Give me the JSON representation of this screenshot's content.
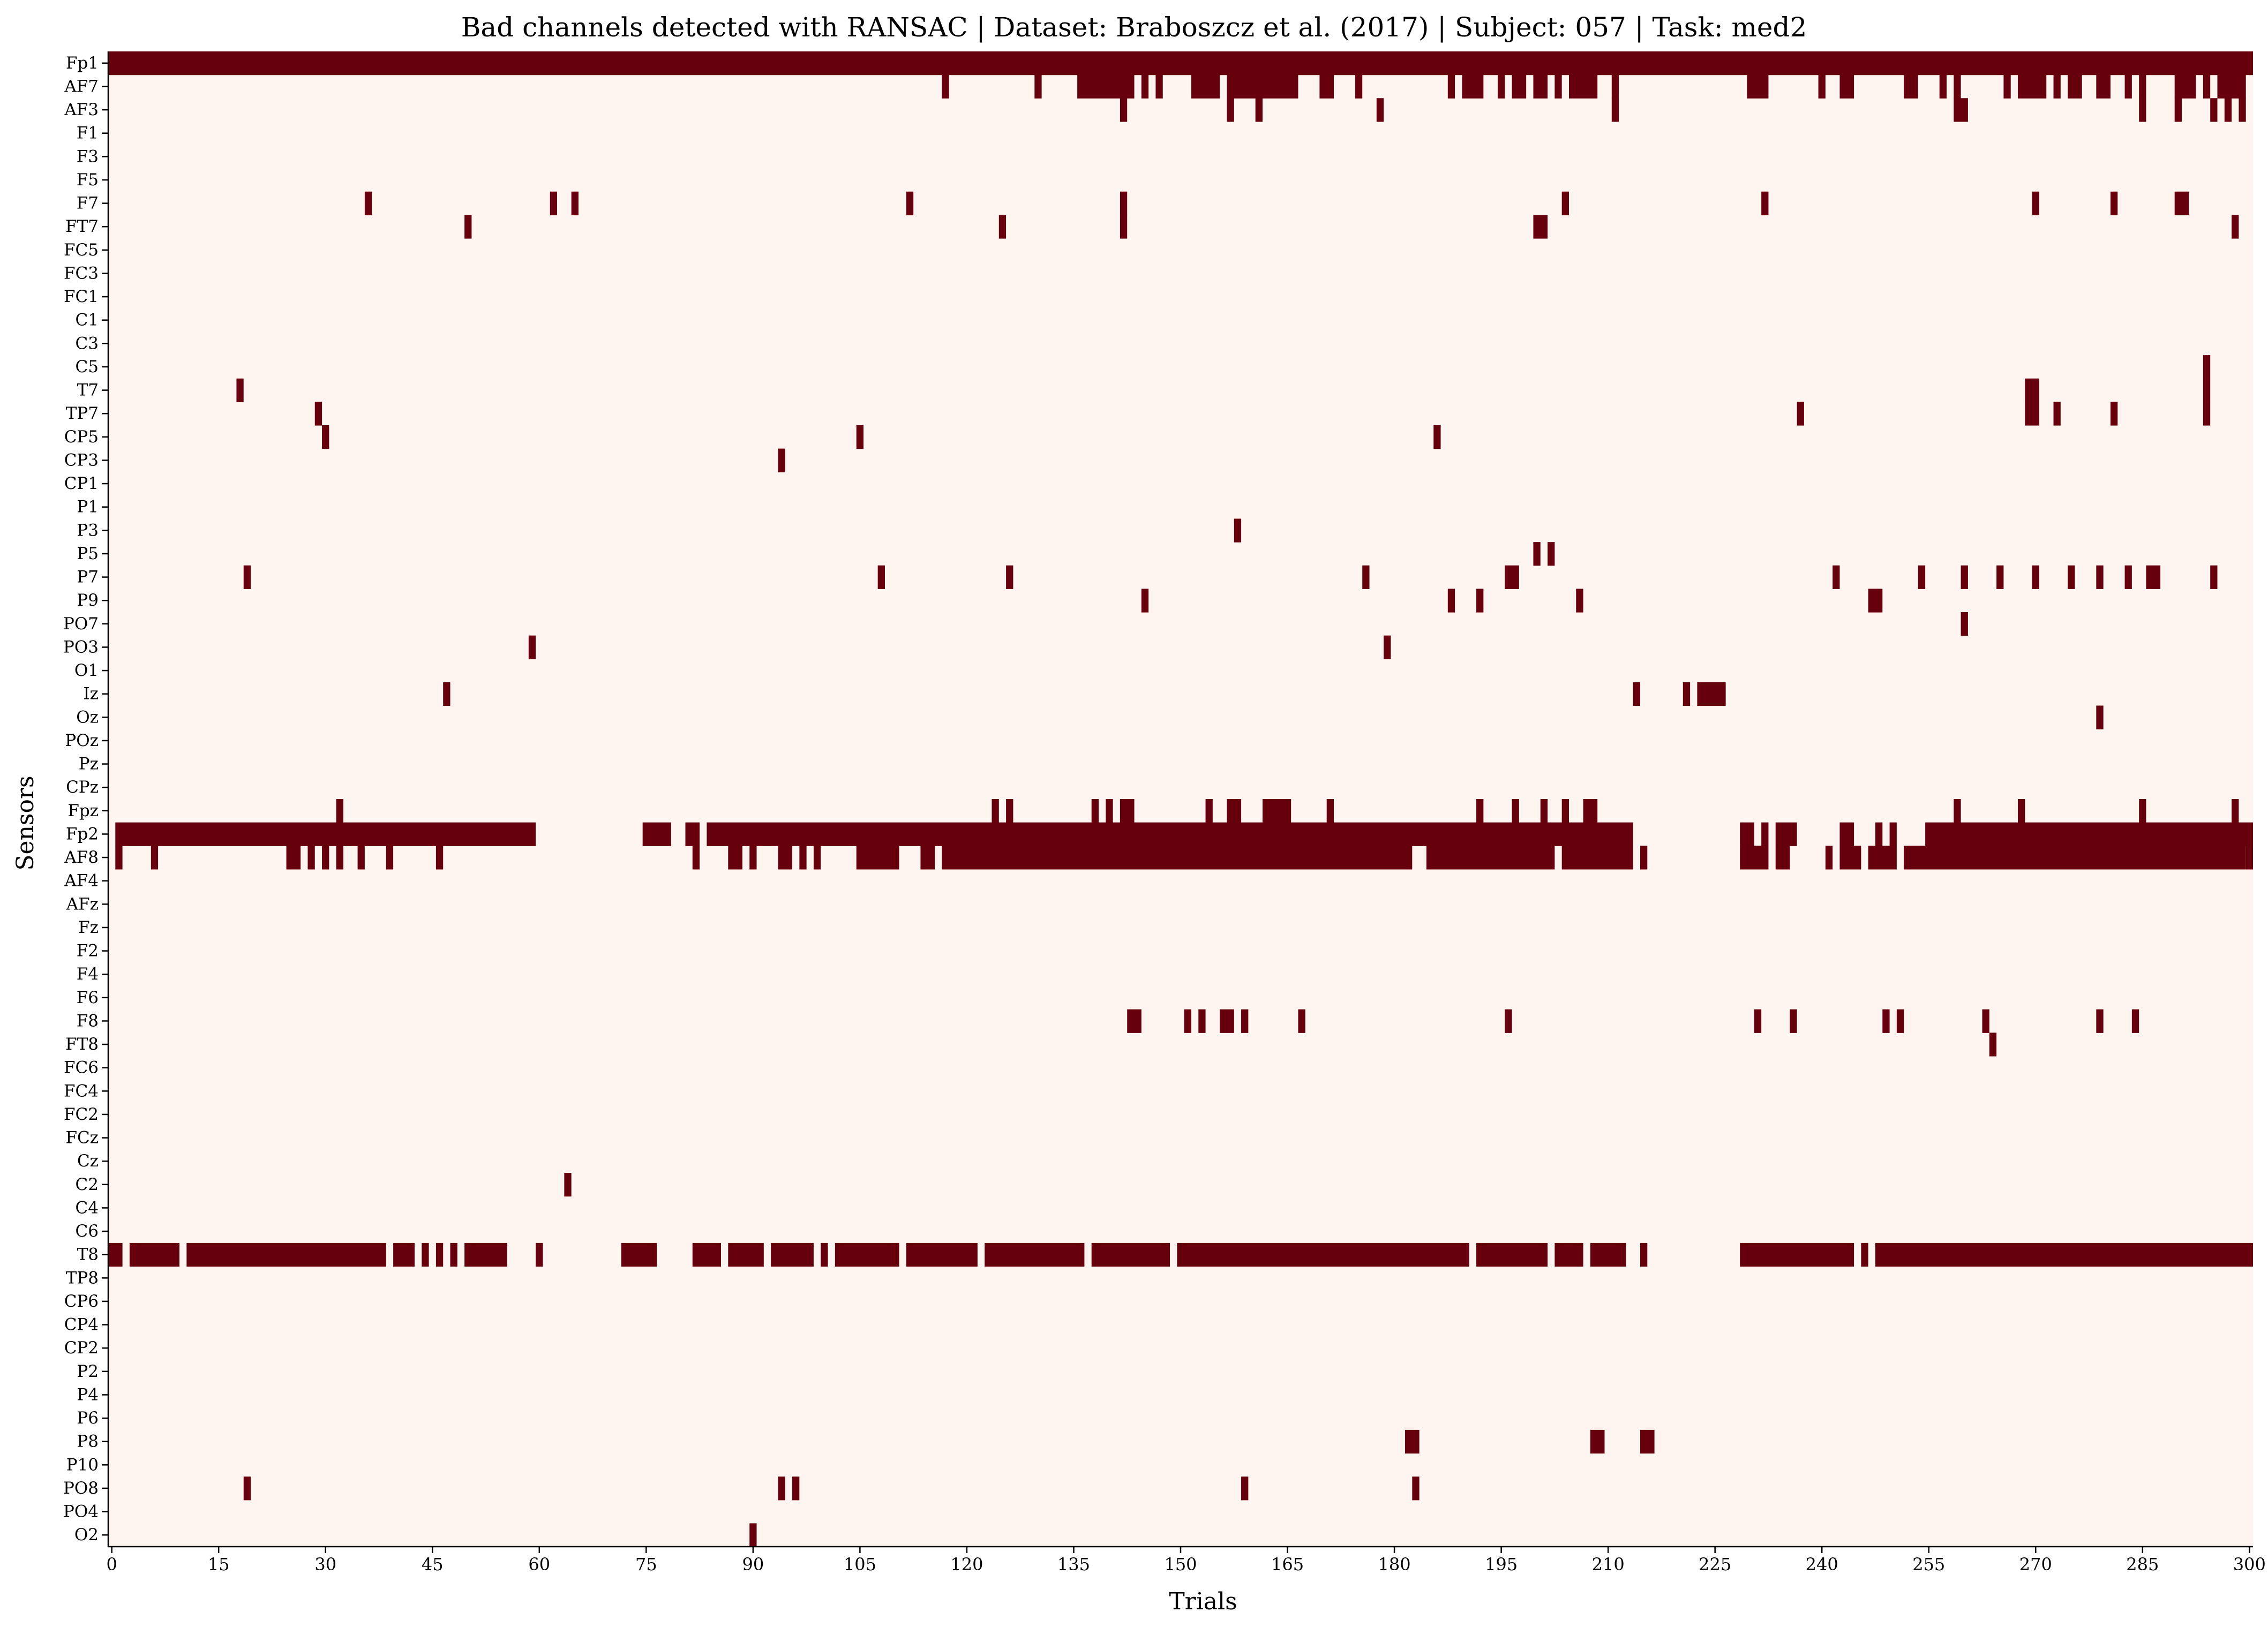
{
  "chart_data": {
    "type": "heatmap",
    "title": "Bad channels detected with RANSAC  |  Dataset: Braboszcz et al. (2017) | Subject: 057 | Task: med2",
    "xlabel": "Trials",
    "ylabel": "Sensors",
    "xlim": [
      0,
      301
    ],
    "xticks": [
      0,
      15,
      30,
      45,
      60,
      75,
      90,
      105,
      120,
      135,
      150,
      165,
      180,
      195,
      210,
      225,
      240,
      255,
      270,
      285,
      300
    ],
    "colors": {
      "bad": "#67000d",
      "good": "#fff5f0",
      "highlight_label": "#e8111d",
      "label": "#000000"
    },
    "highlighted_sensors": [
      "Fp1",
      "Fp2",
      "AF8",
      "T8"
    ],
    "sensors": [
      "Fp1",
      "AF7",
      "AF3",
      "F1",
      "F3",
      "F5",
      "F7",
      "FT7",
      "FC5",
      "FC3",
      "FC1",
      "C1",
      "C3",
      "C5",
      "T7",
      "TP7",
      "CP5",
      "CP3",
      "CP1",
      "P1",
      "P3",
      "P5",
      "P7",
      "P9",
      "PO7",
      "PO3",
      "O1",
      "Iz",
      "Oz",
      "POz",
      "Pz",
      "CPz",
      "Fpz",
      "Fp2",
      "AF8",
      "AF4",
      "AFz",
      "Fz",
      "F2",
      "F4",
      "F6",
      "F8",
      "FT8",
      "FC6",
      "FC4",
      "FC2",
      "FCz",
      "Cz",
      "C2",
      "C4",
      "C6",
      "T8",
      "TP8",
      "CP6",
      "CP4",
      "CP2",
      "P2",
      "P4",
      "P6",
      "P8",
      "P10",
      "PO8",
      "PO4",
      "O2"
    ],
    "bad_segments": {
      "Fp1": [
        [
          0,
          301
        ]
      ],
      "AF7": [
        [
          117,
          118
        ],
        [
          130,
          131
        ],
        [
          136,
          144
        ],
        [
          145,
          146
        ],
        [
          147,
          148
        ],
        [
          152,
          156
        ],
        [
          157,
          167
        ],
        [
          170,
          172
        ],
        [
          175,
          176
        ],
        [
          188,
          189
        ],
        [
          190,
          193
        ],
        [
          195,
          196
        ],
        [
          197,
          199
        ],
        [
          200,
          202
        ],
        [
          203,
          204
        ],
        [
          205,
          209
        ],
        [
          211,
          212
        ],
        [
          230,
          233
        ],
        [
          240,
          241
        ],
        [
          243,
          245
        ],
        [
          252,
          254
        ],
        [
          257,
          258
        ],
        [
          259,
          260
        ],
        [
          266,
          267
        ],
        [
          268,
          272
        ],
        [
          273,
          274
        ],
        [
          275,
          277
        ],
        [
          279,
          281
        ],
        [
          283,
          284
        ],
        [
          285,
          286
        ],
        [
          290,
          293
        ],
        [
          294,
          295
        ],
        [
          296,
          300
        ]
      ],
      "AF3": [
        [
          142,
          143
        ],
        [
          157,
          158
        ],
        [
          161,
          162
        ],
        [
          178,
          179
        ],
        [
          211,
          212
        ],
        [
          259,
          261
        ],
        [
          285,
          286
        ],
        [
          290,
          291
        ],
        [
          295,
          296
        ],
        [
          297,
          298
        ],
        [
          299,
          300
        ]
      ],
      "F7": [
        [
          36,
          37
        ],
        [
          62,
          63
        ],
        [
          65,
          66
        ],
        [
          112,
          113
        ],
        [
          142,
          143
        ],
        [
          204,
          205
        ],
        [
          232,
          233
        ],
        [
          270,
          271
        ],
        [
          281,
          282
        ],
        [
          290,
          292
        ]
      ],
      "FT7": [
        [
          50,
          51
        ],
        [
          125,
          126
        ],
        [
          142,
          143
        ],
        [
          200,
          202
        ],
        [
          298,
          299
        ]
      ],
      "C5": [
        [
          294,
          295
        ]
      ],
      "T7": [
        [
          18,
          19
        ],
        [
          269,
          271
        ],
        [
          294,
          295
        ]
      ],
      "TP7": [
        [
          29,
          30
        ],
        [
          237,
          238
        ],
        [
          269,
          271
        ],
        [
          273,
          274
        ],
        [
          281,
          282
        ],
        [
          294,
          295
        ]
      ],
      "CP5": [
        [
          30,
          31
        ],
        [
          105,
          106
        ],
        [
          186,
          187
        ]
      ],
      "CP3": [
        [
          94,
          95
        ]
      ],
      "P3": [
        [
          158,
          159
        ]
      ],
      "P5": [
        [
          200,
          201
        ],
        [
          202,
          203
        ]
      ],
      "P7": [
        [
          19,
          20
        ],
        [
          108,
          109
        ],
        [
          126,
          127
        ],
        [
          176,
          177
        ],
        [
          196,
          198
        ],
        [
          242,
          243
        ],
        [
          254,
          255
        ],
        [
          260,
          261
        ],
        [
          265,
          266
        ],
        [
          270,
          271
        ],
        [
          275,
          276
        ],
        [
          279,
          280
        ],
        [
          283,
          284
        ],
        [
          286,
          288
        ],
        [
          295,
          296
        ]
      ],
      "P9": [
        [
          145,
          146
        ],
        [
          188,
          189
        ],
        [
          192,
          193
        ],
        [
          206,
          207
        ],
        [
          247,
          249
        ]
      ],
      "PO7": [
        [
          260,
          261
        ]
      ],
      "PO3": [
        [
          59,
          60
        ],
        [
          179,
          180
        ]
      ],
      "Iz": [
        [
          47,
          48
        ],
        [
          214,
          215
        ],
        [
          221,
          222
        ],
        [
          223,
          227
        ]
      ],
      "Oz": [
        [
          279,
          280
        ]
      ],
      "Fpz": [
        [
          32,
          33
        ],
        [
          124,
          125
        ],
        [
          126,
          127
        ],
        [
          138,
          139
        ],
        [
          140,
          141
        ],
        [
          142,
          144
        ],
        [
          154,
          155
        ],
        [
          157,
          159
        ],
        [
          162,
          166
        ],
        [
          171,
          172
        ],
        [
          192,
          193
        ],
        [
          197,
          198
        ],
        [
          201,
          202
        ],
        [
          204,
          205
        ],
        [
          207,
          209
        ],
        [
          259,
          260
        ],
        [
          268,
          269
        ],
        [
          285,
          286
        ],
        [
          298,
          299
        ]
      ],
      "Fp2": [
        [
          1,
          60
        ],
        [
          75,
          79
        ],
        [
          81,
          83
        ],
        [
          84,
          214
        ],
        [
          229,
          231
        ],
        [
          232,
          233
        ],
        [
          234,
          237
        ],
        [
          243,
          245
        ],
        [
          248,
          249
        ],
        [
          250,
          251
        ],
        [
          255,
          301
        ]
      ],
      "AF8": [
        [
          1,
          2
        ],
        [
          6,
          7
        ],
        [
          25,
          27
        ],
        [
          28,
          29
        ],
        [
          30,
          31
        ],
        [
          32,
          33
        ],
        [
          35,
          36
        ],
        [
          39,
          40
        ],
        [
          46,
          47
        ],
        [
          82,
          83
        ],
        [
          87,
          89
        ],
        [
          90,
          91
        ],
        [
          94,
          96
        ],
        [
          97,
          98
        ],
        [
          99,
          100
        ],
        [
          105,
          111
        ],
        [
          114,
          116
        ],
        [
          117,
          183
        ],
        [
          185,
          203
        ],
        [
          204,
          214
        ],
        [
          215,
          216
        ],
        [
          229,
          233
        ],
        [
          234,
          236
        ],
        [
          241,
          242
        ],
        [
          243,
          246
        ],
        [
          247,
          251
        ],
        [
          252,
          300
        ],
        [
          300,
          301
        ]
      ],
      "F8": [
        [
          143,
          145
        ],
        [
          151,
          152
        ],
        [
          153,
          154
        ],
        [
          156,
          158
        ],
        [
          159,
          160
        ],
        [
          167,
          168
        ],
        [
          196,
          197
        ],
        [
          231,
          232
        ],
        [
          236,
          237
        ],
        [
          249,
          250
        ],
        [
          251,
          252
        ],
        [
          263,
          264
        ],
        [
          279,
          280
        ],
        [
          284,
          285
        ]
      ],
      "FT8": [
        [
          264,
          265
        ]
      ],
      "C2": [
        [
          64,
          65
        ]
      ],
      "T8": [
        [
          0,
          2
        ],
        [
          3,
          10
        ],
        [
          11,
          39
        ],
        [
          40,
          43
        ],
        [
          44,
          45
        ],
        [
          46,
          47
        ],
        [
          48,
          49
        ],
        [
          50,
          56
        ],
        [
          60,
          61
        ],
        [
          72,
          77
        ],
        [
          82,
          86
        ],
        [
          87,
          92
        ],
        [
          93,
          99
        ],
        [
          100,
          101
        ],
        [
          102,
          111
        ],
        [
          112,
          122
        ],
        [
          123,
          137
        ],
        [
          138,
          149
        ],
        [
          150,
          191
        ],
        [
          192,
          202
        ],
        [
          203,
          207
        ],
        [
          208,
          213
        ],
        [
          215,
          216
        ],
        [
          229,
          245
        ],
        [
          246,
          247
        ],
        [
          248,
          301
        ]
      ],
      "P8": [
        [
          182,
          184
        ],
        [
          208,
          210
        ],
        [
          215,
          217
        ]
      ],
      "PO8": [
        [
          19,
          20
        ],
        [
          94,
          95
        ],
        [
          96,
          97
        ],
        [
          159,
          160
        ],
        [
          183,
          184
        ]
      ],
      "O2": [
        [
          90,
          91
        ]
      ]
    }
  }
}
